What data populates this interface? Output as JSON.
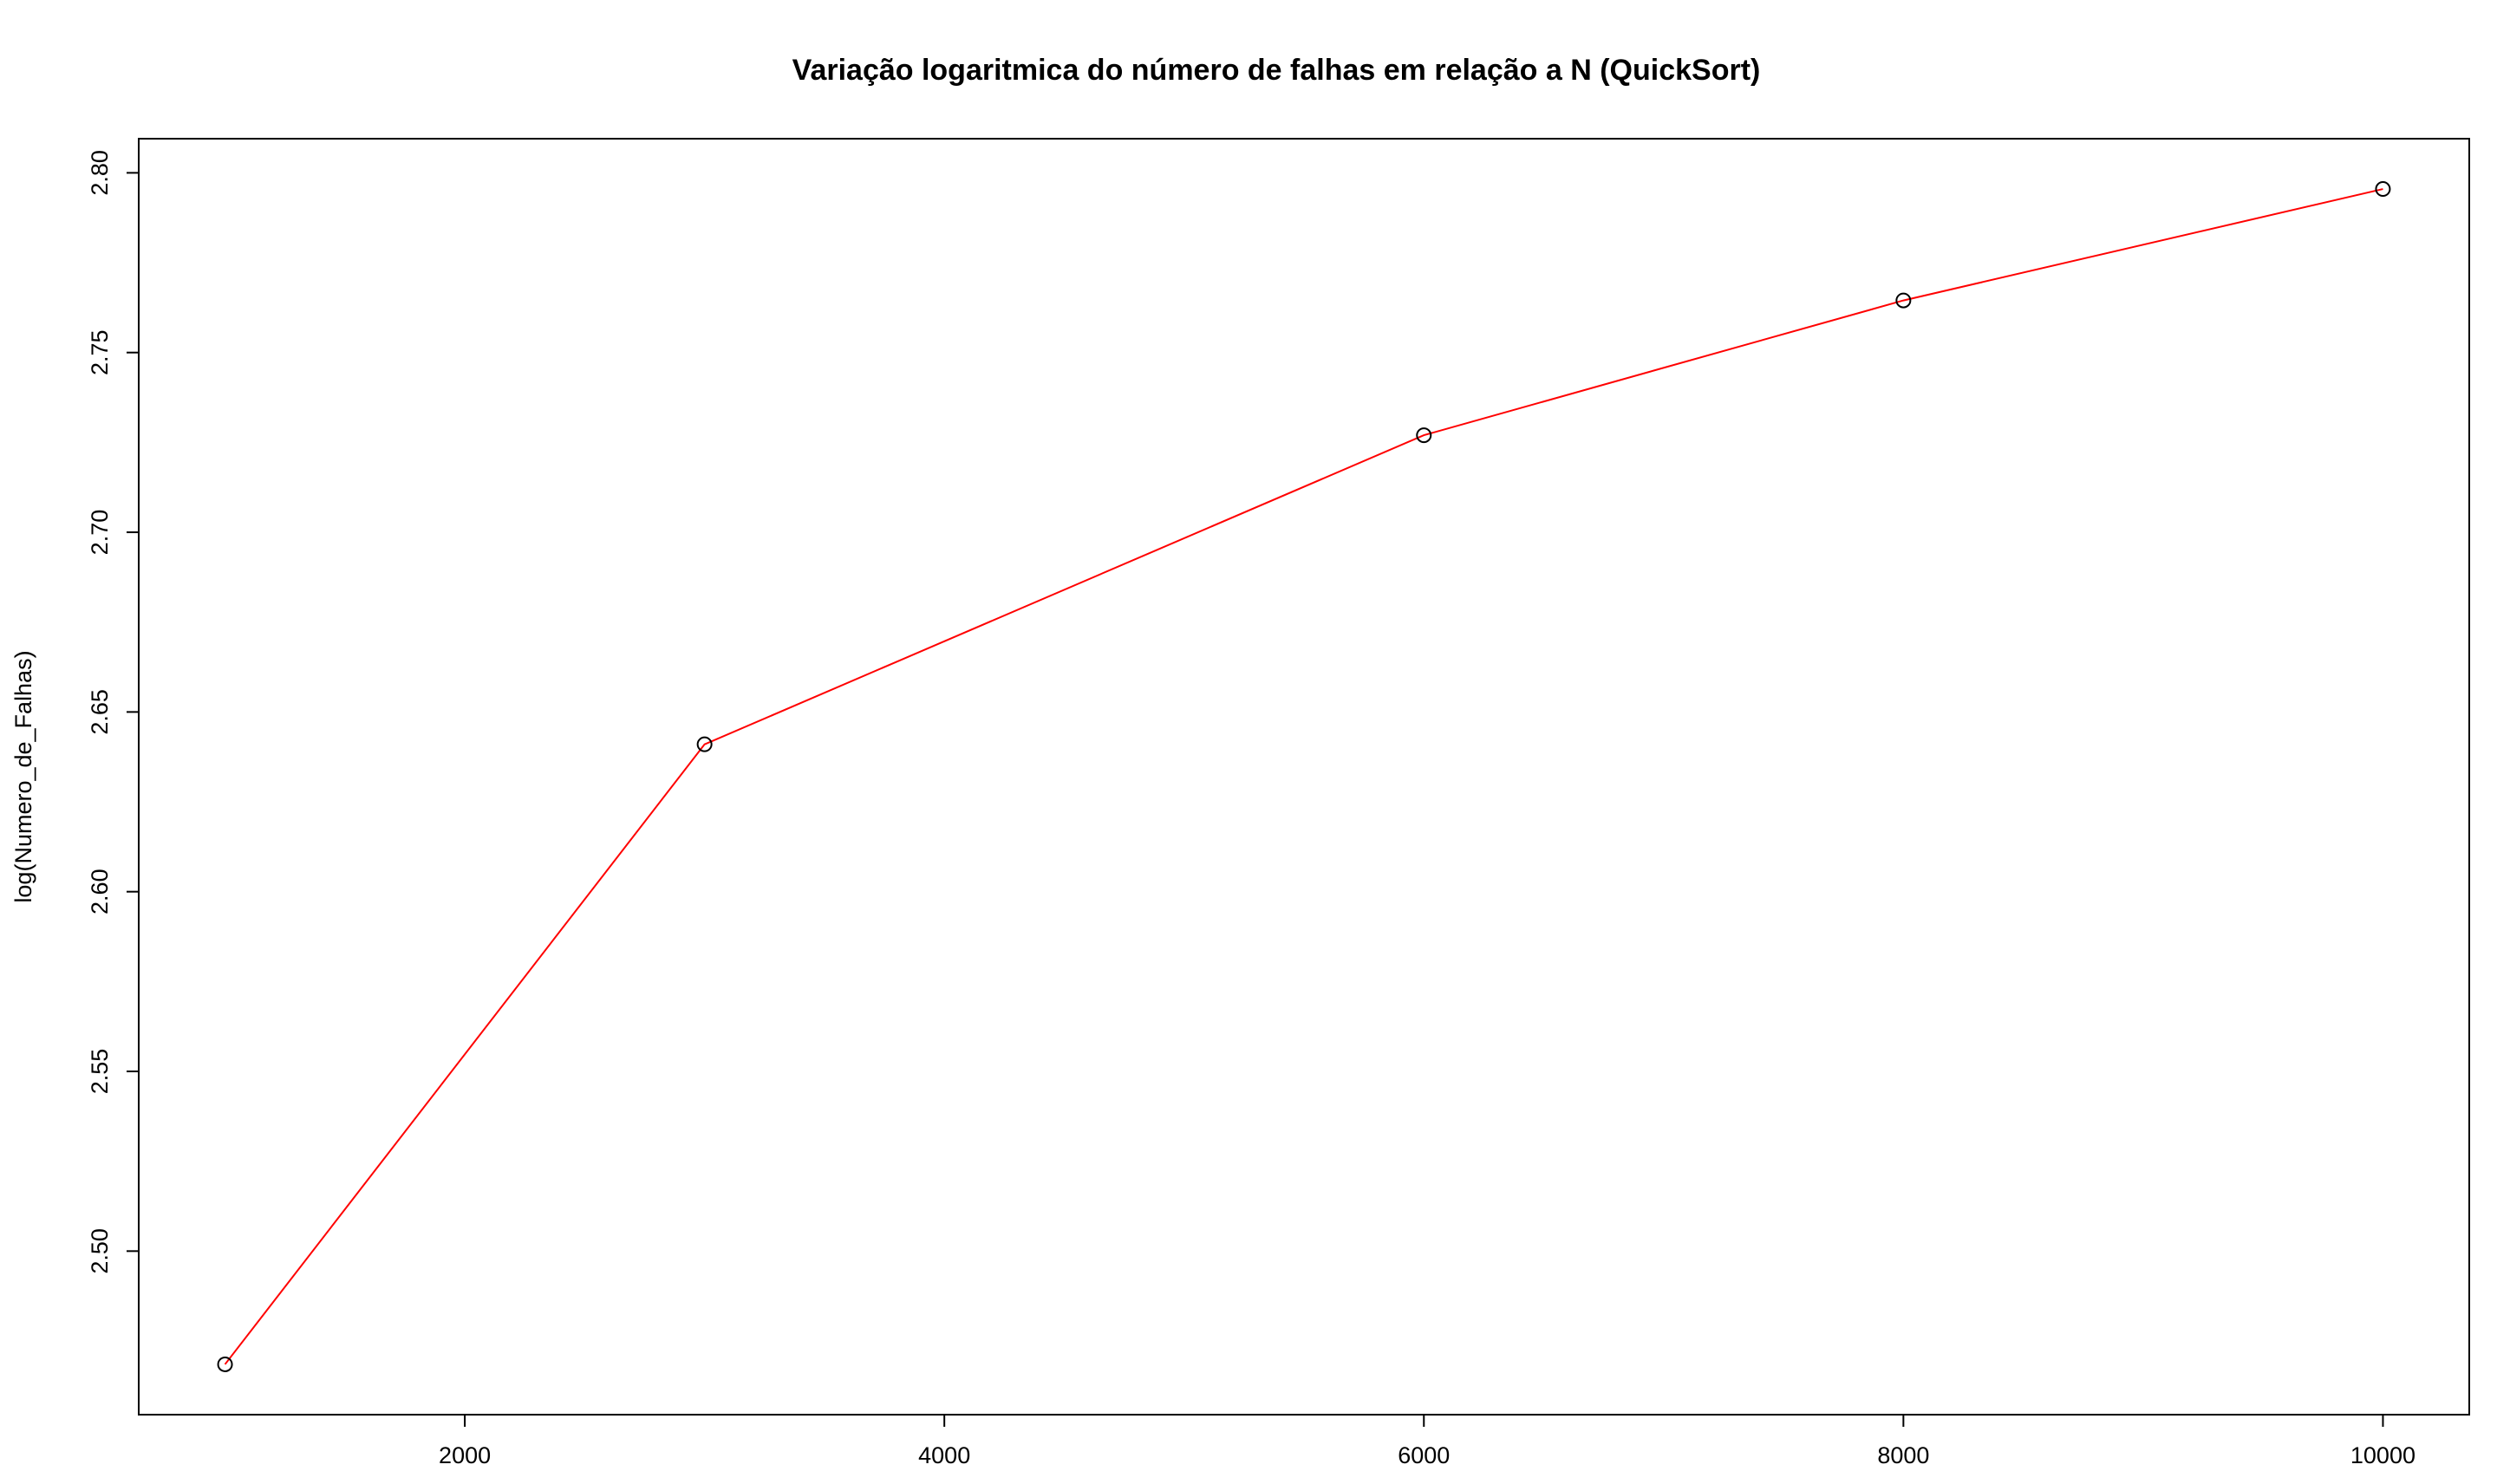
{
  "chart_data": {
    "type": "line",
    "title": "Variação logaritmica do número de falhas em relação a N (QuickSort)",
    "xlabel": "",
    "ylabel": "log(Numero_de_Falhas)",
    "x": [
      1000,
      3000,
      6000,
      8000,
      10000
    ],
    "series": [
      {
        "values": [
          2.4685,
          2.641,
          2.727,
          2.7645,
          2.7955
        ],
        "line_color": "#ff0000",
        "marker": "open-circle",
        "marker_color": "#000000"
      }
    ],
    "xlim": [
      640,
      10360
    ],
    "ylim": [
      2.4545,
      2.8095
    ],
    "x_ticks": [
      2000,
      4000,
      6000,
      8000,
      10000
    ],
    "x_tick_labels": [
      "2000",
      "4000",
      "6000",
      "8000",
      "10000"
    ],
    "y_ticks": [
      2.5,
      2.55,
      2.6,
      2.65,
      2.7,
      2.75,
      2.8
    ],
    "y_tick_labels": [
      "2.50",
      "2.55",
      "2.60",
      "2.65",
      "2.70",
      "2.75",
      "2.80"
    ],
    "grid": false,
    "legend": "none"
  }
}
